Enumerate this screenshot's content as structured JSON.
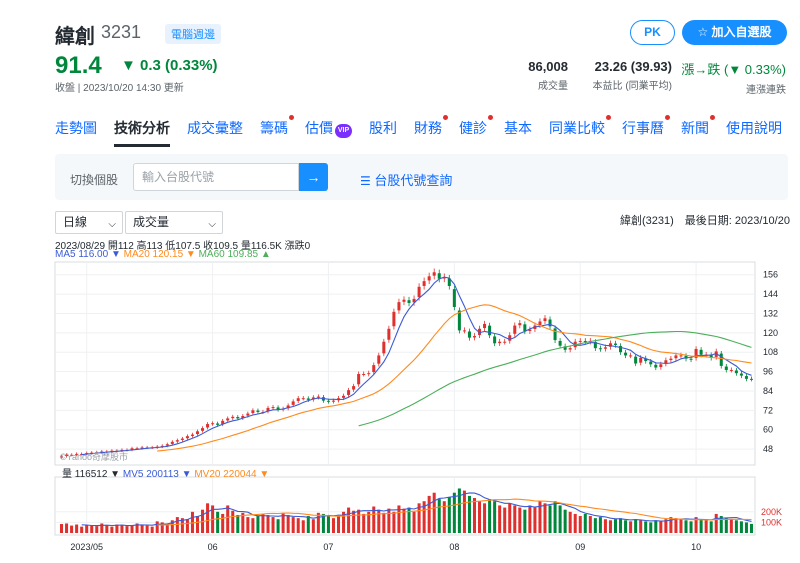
{
  "header": {
    "name": "緯創",
    "code": "3231",
    "badge": "電腦週邊",
    "price": "91.4",
    "change": "▼ 0.3 (0.33%)",
    "timestamp": "收盤 | 2023/10/20 14:30 更新",
    "stats": [
      {
        "value": "86,008",
        "label": "成交量"
      },
      {
        "value": "23.26 (39.93)",
        "label": "本益比 (同業平均)"
      },
      {
        "value": "漲→跌 (▼ 0.33%)",
        "label": "連漲連跌"
      }
    ],
    "pk_label": "PK",
    "add_label": "加入自選股"
  },
  "tabs": [
    {
      "label": "走勢圖",
      "dot": false
    },
    {
      "label": "技術分析",
      "dot": false,
      "active": true
    },
    {
      "label": "成交彙整",
      "dot": false
    },
    {
      "label": "籌碼",
      "dot": true
    },
    {
      "label": "估價",
      "dot": false,
      "vip": "VIP"
    },
    {
      "label": "股利",
      "dot": false
    },
    {
      "label": "財務",
      "dot": true
    },
    {
      "label": "健診",
      "dot": true
    },
    {
      "label": "基本",
      "dot": false
    },
    {
      "label": "同業比較",
      "dot": true
    },
    {
      "label": "行事曆",
      "dot": true
    },
    {
      "label": "新聞",
      "dot": true
    },
    {
      "label": "使用說明",
      "dot": false
    }
  ],
  "search": {
    "label": "切換個股",
    "placeholder": "輸入台股代號",
    "lookup": "台股代號查詢"
  },
  "controls": {
    "period": "日線",
    "indicator": "成交量",
    "right_info": "緯創(3231)　最後日期: 2023/10/20"
  },
  "chart_info": {
    "ohlc": "2023/08/29 開112 高113 低107.5 收109.5 量116.5K 漲跌0",
    "ma5": "MA5 116.00 ▼",
    "ma20": "MA20 120.15 ▼",
    "ma60": "MA60 109.85 ▲",
    "vol": "量 116512 ▼",
    "mv5": "MV5 200113 ▼",
    "mv20": "MV20 220044 ▼",
    "watermark": "©Yahoo奇摩股市"
  },
  "colors": {
    "up": "#e0302d",
    "down": "#00873c",
    "ma5": "#3b5bd6",
    "ma20": "#ff8a1e",
    "ma60": "#4caf5a"
  },
  "chart_data": {
    "type": "candlestick",
    "y_ticks": [
      48,
      60,
      72,
      84,
      96,
      108,
      120,
      132,
      144,
      156
    ],
    "ylim": [
      40,
      162
    ],
    "vol_ticks": [
      {
        "label": "200K",
        "value": 200000
      },
      {
        "label": "100K",
        "value": 100000
      }
    ],
    "vol_max": 500000,
    "x_ticks": [
      {
        "label": "2023/05",
        "index": 5
      },
      {
        "label": "06",
        "index": 30
      },
      {
        "label": "07",
        "index": 53
      },
      {
        "label": "08",
        "index": 78
      },
      {
        "label": "09",
        "index": 103
      },
      {
        "label": "10",
        "index": 126
      }
    ],
    "closes": [
      43.5,
      44.5,
      44.5,
      45.0,
      45.0,
      45.5,
      45.8,
      46.0,
      46.5,
      46.5,
      47.0,
      47.0,
      47.5,
      47.5,
      48.5,
      48.5,
      49.0,
      49.0,
      49.0,
      49.5,
      50.0,
      51.0,
      52.5,
      53.5,
      54.5,
      56.0,
      57.0,
      59.0,
      61.0,
      63.5,
      64.0,
      63.0,
      65.5,
      67.0,
      68.0,
      67.0,
      68.5,
      70.0,
      72.0,
      71.0,
      71.0,
      73.5,
      74.0,
      72.5,
      73.0,
      75.0,
      77.5,
      79.5,
      79.5,
      78.5,
      80.0,
      80.5,
      78.0,
      77.5,
      78.0,
      79.5,
      81.0,
      84.5,
      87.0,
      94.5,
      94.5,
      95.0,
      100.0,
      106.0,
      114.5,
      122.5,
      133.0,
      139.0,
      140.5,
      138.5,
      141.0,
      148.5,
      152.0,
      155.0,
      157.5,
      153.5,
      154.5,
      149.0,
      136.0,
      121.5,
      121.5,
      117.0,
      118.0,
      122.5,
      125.5,
      118.5,
      113.5,
      114.5,
      114.5,
      118.5,
      124.5,
      126.0,
      121.0,
      122.0,
      124.5,
      127.0,
      129.0,
      124.0,
      115.5,
      112.0,
      109.5,
      110.5,
      114.5,
      115.0,
      114.5,
      115.0,
      110.5,
      110.0,
      111.0,
      113.5,
      112.5,
      108.0,
      106.0,
      106.0,
      101.0,
      104.5,
      102.5,
      100.5,
      98.5,
      100.5,
      103.0,
      104.0,
      106.0,
      106.0,
      104.0,
      103.5,
      110.0,
      106.5,
      106.5,
      104.5,
      108.5,
      99.5,
      97.0,
      97.0,
      95.0,
      93.5,
      91.5,
      91.4
    ],
    "volumes": [
      85000,
      90000,
      70000,
      80000,
      60000,
      75000,
      70000,
      65000,
      90000,
      70000,
      60000,
      80000,
      75000,
      65000,
      70000,
      90000,
      80000,
      70000,
      60000,
      110000,
      100000,
      90000,
      120000,
      150000,
      140000,
      130000,
      200000,
      160000,
      220000,
      280000,
      260000,
      200000,
      180000,
      260000,
      210000,
      170000,
      190000,
      150000,
      140000,
      160000,
      180000,
      170000,
      150000,
      130000,
      190000,
      170000,
      150000,
      140000,
      120000,
      160000,
      130000,
      190000,
      180000,
      170000,
      140000,
      160000,
      200000,
      240000,
      210000,
      220000,
      180000,
      200000,
      250000,
      220000,
      190000,
      230000,
      200000,
      260000,
      230000,
      240000,
      200000,
      280000,
      300000,
      350000,
      380000,
      320000,
      300000,
      340000,
      380000,
      420000,
      400000,
      350000,
      330000,
      300000,
      280000,
      320000,
      300000,
      260000,
      240000,
      280000,
      260000,
      240000,
      220000,
      260000,
      240000,
      300000,
      280000,
      260000,
      300000,
      260000,
      220000,
      200000,
      180000,
      160000,
      180000,
      160000,
      140000,
      150000,
      130000,
      120000,
      130000,
      140000,
      120000,
      110000,
      130000,
      120000,
      110000,
      100000,
      120000,
      110000,
      130000,
      150000,
      140000,
      130000,
      120000,
      110000,
      150000,
      130000,
      120000,
      110000,
      180000,
      160000,
      140000,
      130000,
      120000,
      110000,
      100000,
      86008
    ]
  }
}
